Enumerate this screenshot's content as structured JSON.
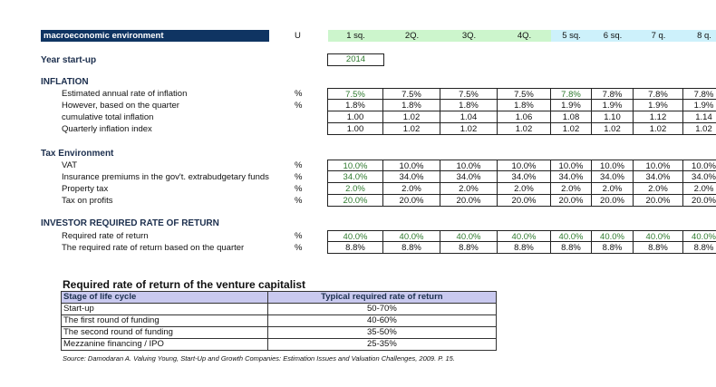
{
  "header": {
    "title": "macroeconomic environment",
    "unit_label": "U",
    "quarters": [
      "1 sq.",
      "2Q.",
      "3Q.",
      "4Q.",
      "5 sq.",
      "6 sq.",
      "7 q.",
      "8 q."
    ]
  },
  "year": {
    "label": "Year start-up",
    "value": "2014"
  },
  "sections": [
    {
      "title": "INFLATION",
      "rows": [
        {
          "label": "Estimated annual rate of inflation",
          "unit": "%",
          "values": [
            "7.5%",
            "7.5%",
            "7.5%",
            "7.5%",
            "7.8%",
            "7.8%",
            "7.8%",
            "7.8%"
          ],
          "green": [
            0,
            4
          ]
        },
        {
          "label": "However, based on the quarter",
          "unit": "%",
          "values": [
            "1.8%",
            "1.8%",
            "1.8%",
            "1.8%",
            "1.9%",
            "1.9%",
            "1.9%",
            "1.9%"
          ],
          "green": []
        },
        {
          "label": "cumulative total inflation",
          "unit": "",
          "values": [
            "1.00",
            "1.02",
            "1.04",
            "1.06",
            "1.08",
            "1.10",
            "1.12",
            "1.14"
          ],
          "green": []
        },
        {
          "label": "Quarterly inflation index",
          "unit": "",
          "values": [
            "1.00",
            "1.02",
            "1.02",
            "1.02",
            "1.02",
            "1.02",
            "1.02",
            "1.02"
          ],
          "green": []
        }
      ]
    },
    {
      "title": "Tax Environment",
      "rows": [
        {
          "label": "VAT",
          "unit": "%",
          "values": [
            "10.0%",
            "10.0%",
            "10.0%",
            "10.0%",
            "10.0%",
            "10.0%",
            "10.0%",
            "10.0%"
          ],
          "green": [
            0
          ]
        },
        {
          "label": "Insurance premiums in the gov't. extrabudgetary funds",
          "unit": "%",
          "values": [
            "34.0%",
            "34.0%",
            "34.0%",
            "34.0%",
            "34.0%",
            "34.0%",
            "34.0%",
            "34.0%"
          ],
          "green": [
            0
          ]
        },
        {
          "label": "Property tax",
          "unit": "%",
          "values": [
            "2.0%",
            "2.0%",
            "2.0%",
            "2.0%",
            "2.0%",
            "2.0%",
            "2.0%",
            "2.0%"
          ],
          "green": [
            0
          ]
        },
        {
          "label": "Tax on profits",
          "unit": "%",
          "values": [
            "20.0%",
            "20.0%",
            "20.0%",
            "20.0%",
            "20.0%",
            "20.0%",
            "20.0%",
            "20.0%"
          ],
          "green": [
            0
          ]
        }
      ]
    },
    {
      "title": "INVESTOR REQUIRED RATE OF RETURN",
      "rows": [
        {
          "label": "Required rate of return",
          "unit": "%",
          "values": [
            "40.0%",
            "40.0%",
            "40.0%",
            "40.0%",
            "40.0%",
            "40.0%",
            "40.0%",
            "40.0%"
          ],
          "green": [
            0,
            1,
            2,
            3,
            4,
            5,
            6,
            7
          ]
        },
        {
          "label": "The required rate of return based on the quarter",
          "unit": "%",
          "values": [
            "8.8%",
            "8.8%",
            "8.8%",
            "8.8%",
            "8.8%",
            "8.8%",
            "8.8%",
            "8.8%"
          ],
          "green": []
        }
      ]
    }
  ],
  "vc_table": {
    "title": "Required rate of return of the venture capitalist",
    "headers": [
      "Stage of life cycle",
      "Typical required rate of return"
    ],
    "rows": [
      [
        "Start-up",
        "50-70%"
      ],
      [
        "The first round of funding",
        "40-60%"
      ],
      [
        "The second round of funding",
        "35-50%"
      ],
      [
        "Mezzanine financing / IPO",
        "25-35%"
      ]
    ],
    "source": "Source: Damodaran A. Valuing Young, Start-Up and Growth Companies: Estimation Issues and Valuation Challenges, 2009. P. 15."
  },
  "colors": {
    "header_bg": "#0f3462",
    "q_green": "#ccf5cc",
    "q_blue": "#cdf1fb",
    "value_green": "#2f7a2f",
    "table_header": "#c9c9ef"
  }
}
